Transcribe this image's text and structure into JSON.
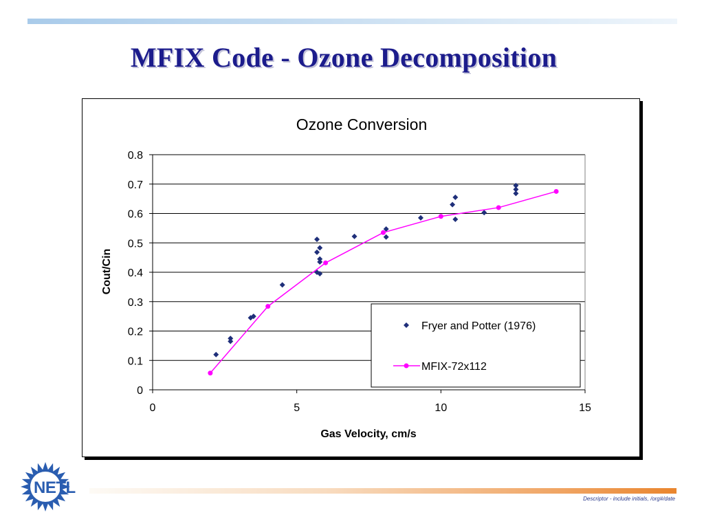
{
  "slide": {
    "title": "MFIX Code - Ozone Decomposition",
    "footer": "Descriptor - include initials, /org#/date",
    "logo_text": "NETL"
  },
  "colors": {
    "title": "#1c1c8c",
    "experimental_marker": "#1f2f7a",
    "mfix_line": "#ff00ff",
    "logo_blue": "#2a5db0"
  },
  "chart_data": {
    "type": "scatter",
    "title": "Ozone Conversion",
    "xlabel": "Gas Velocity, cm/s",
    "ylabel": "Cout/Cin",
    "xlim": [
      0,
      15
    ],
    "ylim": [
      0,
      0.8
    ],
    "x_ticks": [
      "0",
      "5",
      "10",
      "15"
    ],
    "y_ticks": [
      "0",
      "0.1",
      "0.2",
      "0.3",
      "0.4",
      "0.5",
      "0.6",
      "0.7",
      "0.8"
    ],
    "grid": "horizontal",
    "legend_position": "bottom-right",
    "series": [
      {
        "name": "Fryer and Potter (1976)",
        "marker": "diamond",
        "line": false,
        "points": [
          [
            2.2,
            0.12
          ],
          [
            2.7,
            0.165
          ],
          [
            2.7,
            0.175
          ],
          [
            3.4,
            0.245
          ],
          [
            3.5,
            0.25
          ],
          [
            4.5,
            0.357
          ],
          [
            5.7,
            0.512
          ],
          [
            5.7,
            0.468
          ],
          [
            5.8,
            0.483
          ],
          [
            5.8,
            0.445
          ],
          [
            5.8,
            0.435
          ],
          [
            5.7,
            0.4
          ],
          [
            5.8,
            0.395
          ],
          [
            7.0,
            0.522
          ],
          [
            8.1,
            0.547
          ],
          [
            8.1,
            0.52
          ],
          [
            9.3,
            0.585
          ],
          [
            10.4,
            0.63
          ],
          [
            10.5,
            0.655
          ],
          [
            10.5,
            0.58
          ],
          [
            11.5,
            0.603
          ],
          [
            12.6,
            0.695
          ],
          [
            12.6,
            0.682
          ],
          [
            12.6,
            0.668
          ]
        ]
      },
      {
        "name": "MFIX-72x112",
        "marker": "circle",
        "line": true,
        "points": [
          [
            2.0,
            0.057
          ],
          [
            4.0,
            0.284
          ],
          [
            6.0,
            0.432
          ],
          [
            8.0,
            0.535
          ],
          [
            10.0,
            0.59
          ],
          [
            12.0,
            0.62
          ],
          [
            14.0,
            0.675
          ]
        ]
      }
    ]
  }
}
